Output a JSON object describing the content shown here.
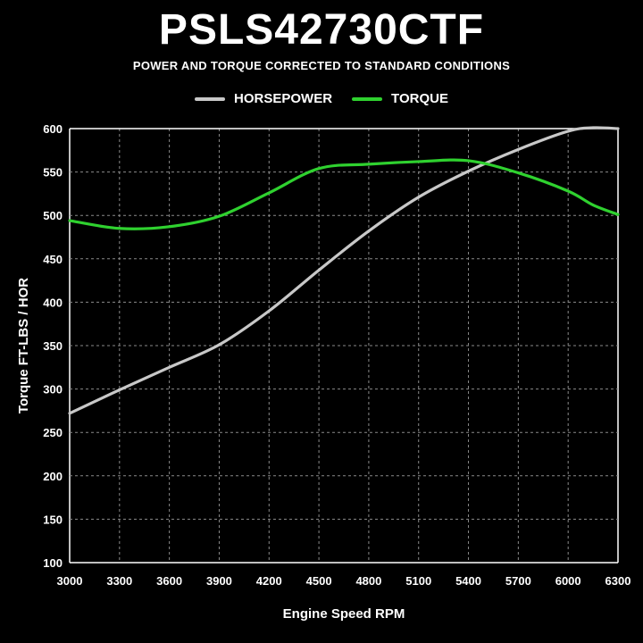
{
  "colors": {
    "background": "#000000",
    "horsepower": "#c8c8c8",
    "torque": "#2fd12f",
    "grid": "#8a8a8a",
    "text": "#ffffff"
  },
  "chart_data": {
    "type": "line",
    "title": "PSLS42730CTF",
    "subtitle": "POWER AND TORQUE CORRECTED TO STANDARD CONDITIONS",
    "xlabel": "Engine Speed RPM",
    "ylabel": "Torque FT-LBS / HOR",
    "xlim": [
      3000,
      6300
    ],
    "ylim": [
      100,
      600
    ],
    "xticks": [
      3000,
      3300,
      3600,
      3900,
      4200,
      4500,
      4800,
      5100,
      5400,
      5700,
      6000,
      6300
    ],
    "yticks": [
      100,
      150,
      200,
      250,
      300,
      350,
      400,
      450,
      500,
      550,
      600
    ],
    "grid": true,
    "legend_position": "top-center",
    "x": [
      3000,
      3300,
      3600,
      3900,
      4200,
      4500,
      4800,
      5100,
      5400,
      5700,
      6000,
      6150,
      6300
    ],
    "series": [
      {
        "name": "HORSEPOWER",
        "color": "#c8c8c8",
        "values": [
          272,
          299,
          325,
          351,
          390,
          437,
          482,
          521,
          551,
          576,
          597,
          601,
          600
        ]
      },
      {
        "name": "TORQUE",
        "color": "#2fd12f",
        "values": [
          494,
          485,
          487,
          499,
          526,
          554,
          559,
          562,
          563,
          549,
          528,
          512,
          501
        ]
      }
    ]
  }
}
